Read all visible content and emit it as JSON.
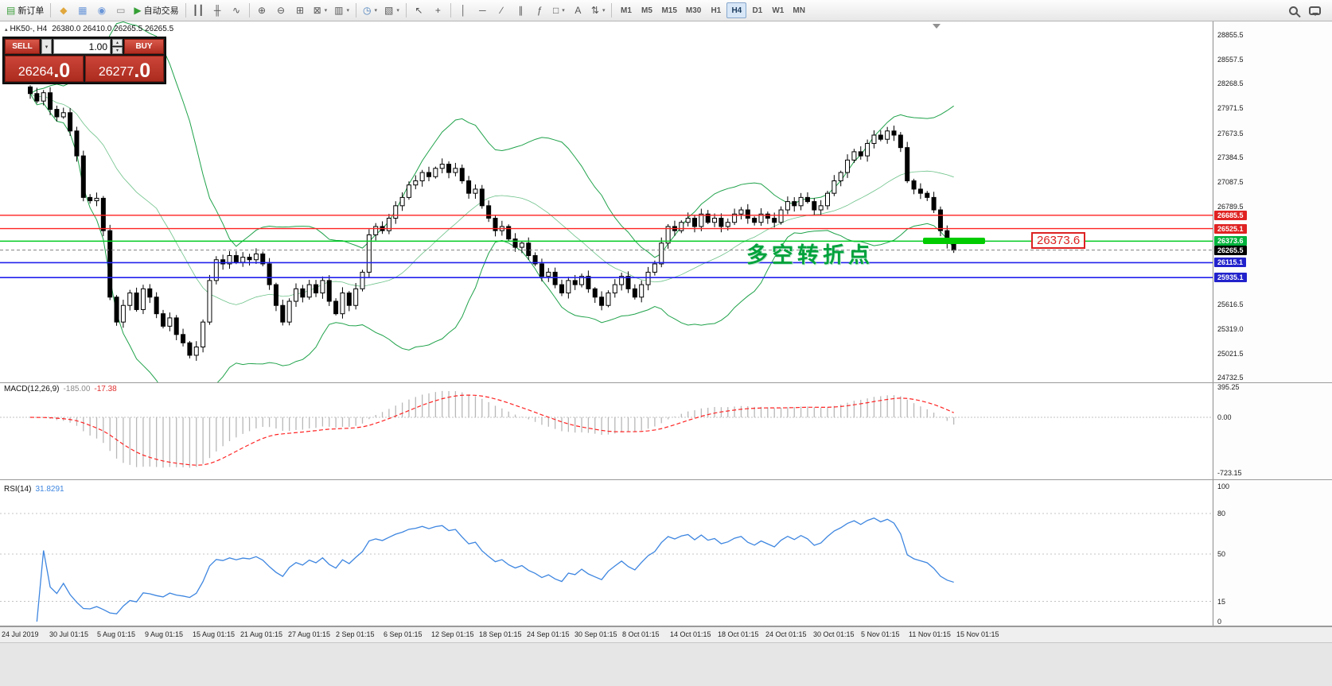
{
  "window": {
    "background": "#e9e9e9"
  },
  "toolbar": {
    "items": [
      {
        "kind": "button",
        "name": "new-order",
        "glyph": "▤",
        "color": "#3a9e3a",
        "label": "新订单"
      },
      {
        "kind": "sep"
      },
      {
        "kind": "button",
        "name": "market-watch",
        "glyph": "◆",
        "color": "#e0a73c"
      },
      {
        "kind": "button",
        "name": "data-window",
        "glyph": "▦",
        "color": "#6a96d8"
      },
      {
        "kind": "button",
        "name": "navigator",
        "glyph": "◉",
        "color": "#6a96d8"
      },
      {
        "kind": "button",
        "name": "terminal",
        "glyph": "▭",
        "color": "#888888"
      },
      {
        "kind": "button",
        "name": "auto-trading",
        "glyph": "▶",
        "color": "#35a035",
        "label": "自动交易"
      },
      {
        "kind": "sep"
      },
      {
        "kind": "button",
        "name": "bar-chart",
        "glyph": "┃┃"
      },
      {
        "kind": "button",
        "name": "candlestick-chart",
        "glyph": "╫"
      },
      {
        "kind": "button",
        "name": "line-chart",
        "glyph": "∿"
      },
      {
        "kind": "sep"
      },
      {
        "kind": "button",
        "name": "zoom-in",
        "glyph": "⊕"
      },
      {
        "kind": "button",
        "name": "zoom-out",
        "glyph": "⊖"
      },
      {
        "kind": "button",
        "name": "tile-windows",
        "glyph": "⊞"
      },
      {
        "kind": "button",
        "name": "new-chart",
        "glyph": "⊠",
        "dropdown": true
      },
      {
        "kind": "button",
        "name": "profiles",
        "glyph": "▥",
        "dropdown": true
      },
      {
        "kind": "sep"
      },
      {
        "kind": "button",
        "name": "period-selector",
        "glyph": "◷",
        "color": "#4a7ebb",
        "dropdown": true
      },
      {
        "kind": "button",
        "name": "templates",
        "glyph": "▧",
        "dropdown": true
      },
      {
        "kind": "sep"
      },
      {
        "kind": "button",
        "name": "cursor",
        "glyph": "↖"
      },
      {
        "kind": "button",
        "name": "crosshair",
        "glyph": "+"
      },
      {
        "kind": "sep"
      },
      {
        "kind": "button",
        "name": "vertical-line",
        "glyph": "│"
      },
      {
        "kind": "button",
        "name": "horizontal-line",
        "glyph": "─"
      },
      {
        "kind": "button",
        "name": "trend-line",
        "glyph": "∕"
      },
      {
        "kind": "button",
        "name": "equidistant-channel",
        "glyph": "∥"
      },
      {
        "kind": "button",
        "name": "fibonacci",
        "glyph": "ƒ"
      },
      {
        "kind": "button",
        "name": "shapes",
        "glyph": "□",
        "dropdown": true
      },
      {
        "kind": "button",
        "name": "text-label",
        "glyph": "A"
      },
      {
        "kind": "button",
        "name": "arrow-objects",
        "glyph": "⇅",
        "dropdown": true
      },
      {
        "kind": "sep"
      }
    ],
    "timeframes": [
      "M1",
      "M5",
      "M15",
      "M30",
      "H1",
      "H4",
      "D1",
      "W1",
      "MN"
    ],
    "active_timeframe": "H4"
  },
  "chart_header": {
    "symbol": "HK50-, H4",
    "ohlc": "26380.0 26410.0 26265.5 26265.5"
  },
  "trade_panel": {
    "sell_label": "SELL",
    "buy_label": "BUY",
    "volume": "1.00",
    "sell_price_main": "26264",
    "sell_price_frac": ".0",
    "buy_price_main": "26277",
    "buy_price_frac": ".0"
  },
  "annotation": {
    "text": "多空转折点",
    "price_label": "26373.6",
    "color": "#00a23c"
  },
  "chart_data": {
    "type": "candlestick",
    "symbol": "HK50",
    "timeframe": "H4",
    "scale": {
      "top_price": 28855.5,
      "bottom_price": 24732.5
    },
    "price_axis_ticks": [
      28855.5,
      28557.5,
      28268.5,
      27971.5,
      27673.5,
      27384.5,
      27087.5,
      26789.5,
      25616.5,
      25319.0,
      25021.5,
      24732.5
    ],
    "levels": [
      {
        "value": 26685.5,
        "label": "26685.5",
        "color": "red"
      },
      {
        "value": 26525.1,
        "label": "26525.1",
        "color": "red"
      },
      {
        "value": 26373.6,
        "label": "26373.6",
        "color": "green"
      },
      {
        "value": 26265.5,
        "label": "26265.5",
        "color": "black",
        "style": "current"
      },
      {
        "value": 26115.1,
        "label": "26115.1",
        "color": "blue"
      },
      {
        "value": 25935.1,
        "label": "25935.1",
        "color": "blue"
      }
    ],
    "closes": [
      28150,
      28060,
      28160,
      27960,
      27870,
      27920,
      27700,
      27400,
      26900,
      26860,
      26890,
      26500,
      25700,
      25400,
      25600,
      25750,
      25550,
      25800,
      25700,
      25500,
      25350,
      25450,
      25250,
      25150,
      25000,
      25100,
      25400,
      25900,
      26150,
      26100,
      26200,
      26120,
      26180,
      26150,
      26220,
      26100,
      25850,
      25600,
      25400,
      25650,
      25800,
      25700,
      25850,
      25750,
      25900,
      25650,
      25500,
      25750,
      25600,
      25800,
      26000,
      26450,
      26550,
      26500,
      26650,
      26800,
      26900,
      27050,
      27100,
      27200,
      27150,
      27250,
      27300,
      27200,
      27250,
      27100,
      26950,
      27000,
      26800,
      26650,
      26500,
      26550,
      26400,
      26300,
      26350,
      26200,
      26100,
      25950,
      26000,
      25850,
      25750,
      25900,
      25850,
      25950,
      25800,
      25700,
      25600,
      25750,
      25850,
      25950,
      25800,
      25700,
      25850,
      26000,
      26100,
      26350,
      26550,
      26500,
      26600,
      26650,
      26550,
      26700,
      26600,
      26650,
      26550,
      26600,
      26700,
      26750,
      26650,
      26600,
      26700,
      26650,
      26600,
      26750,
      26850,
      26800,
      26900,
      26850,
      26750,
      26800,
      26950,
      27100,
      27200,
      27350,
      27450,
      27400,
      27550,
      27650,
      27600,
      27700,
      27650,
      27500,
      27100,
      27000,
      26950,
      26900,
      26750,
      26500,
      26350,
      26265
    ],
    "x_axis_labels": [
      "24 Jul 2019",
      "30 Jul 01:15",
      "5 Aug 01:15",
      "9 Aug 01:15",
      "15 Aug 01:15",
      "21 Aug 01:15",
      "27 Aug 01:15",
      "2 Sep 01:15",
      "6 Sep 01:15",
      "12 Sep 01:15",
      "18 Sep 01:15",
      "24 Sep 01:15",
      "30 Sep 01:15",
      "8 Oct 01:15",
      "14 Oct 01:15",
      "18 Oct 01:15",
      "24 Oct 01:15",
      "30 Oct 01:15",
      "5 Nov 01:15",
      "11 Nov 01:15",
      "15 Nov 01:15"
    ],
    "indicators": {
      "bollinger": {
        "period": 20,
        "deviation": 2,
        "color": "#1fa24a"
      },
      "macd": {
        "name": "MACD(12,26,9)",
        "value_text": "-185.00",
        "signal_text": "-17.38",
        "scale": [
          395.25,
          0,
          -723.15
        ],
        "histogram_color": "#b8b8b8",
        "signal_color": "#ff2222"
      },
      "rsi": {
        "name": "RSI(14)",
        "value_text": "31.8291",
        "scale": [
          100,
          80,
          50,
          15,
          0
        ],
        "line_color": "#3e86e0"
      }
    },
    "highlight_segment": {
      "price": 26373.6,
      "color": "#00cc00"
    }
  }
}
